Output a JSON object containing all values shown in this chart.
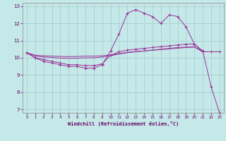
{
  "xlabel": "Windchill (Refroidissement éolien,°C)",
  "background_color": "#c5e8e8",
  "grid_color": "#a0cccc",
  "line_color": "#993399",
  "xlim": [
    -0.5,
    23.5
  ],
  "ylim": [
    6.8,
    13.2
  ],
  "yticks": [
    7,
    8,
    9,
    10,
    11,
    12,
    13
  ],
  "xticks": [
    0,
    1,
    2,
    3,
    4,
    5,
    6,
    7,
    8,
    9,
    10,
    11,
    12,
    13,
    14,
    15,
    16,
    17,
    18,
    19,
    20,
    21,
    22,
    23
  ],
  "hours": [
    0,
    1,
    2,
    3,
    4,
    5,
    6,
    7,
    8,
    9,
    10,
    11,
    12,
    13,
    14,
    15,
    16,
    17,
    18,
    19,
    20,
    21,
    22,
    23
  ],
  "line1": [
    10.3,
    10.0,
    9.8,
    9.7,
    9.6,
    9.5,
    9.5,
    9.4,
    9.4,
    9.6,
    10.4,
    11.4,
    12.6,
    12.8,
    12.6,
    12.4,
    12.0,
    12.5,
    12.4,
    11.8,
    10.8,
    10.4,
    8.3,
    6.8
  ],
  "line2": [
    10.3,
    10.0,
    9.9,
    9.8,
    9.7,
    9.6,
    9.6,
    9.55,
    9.55,
    9.65,
    10.15,
    10.35,
    10.45,
    10.5,
    10.55,
    10.6,
    10.65,
    10.7,
    10.75,
    10.8,
    10.8,
    10.35,
    10.35,
    10.35
  ],
  "line3": [
    10.3,
    10.1,
    10.05,
    10.02,
    9.98,
    9.97,
    9.98,
    10.0,
    10.0,
    10.05,
    10.12,
    10.22,
    10.3,
    10.35,
    10.4,
    10.45,
    10.5,
    10.55,
    10.6,
    10.62,
    10.65,
    10.35,
    10.35,
    10.35
  ],
  "line4": [
    10.3,
    10.15,
    10.12,
    10.1,
    10.08,
    10.07,
    10.08,
    10.1,
    10.1,
    10.12,
    10.17,
    10.25,
    10.32,
    10.36,
    10.4,
    10.44,
    10.48,
    10.52,
    10.56,
    10.6,
    10.62,
    10.35,
    10.35,
    10.35
  ]
}
